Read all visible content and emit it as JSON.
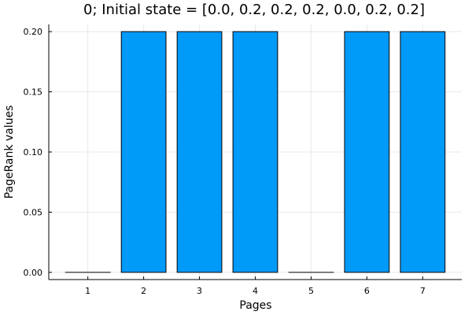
{
  "chart_data": {
    "type": "bar",
    "title": "0; Initial state = [0.0, 0.2, 0.2, 0.2, 0.0, 0.2, 0.2]",
    "xlabel": "Pages",
    "ylabel": "PageRank values",
    "categories": [
      "1",
      "2",
      "3",
      "4",
      "5",
      "6",
      "7"
    ],
    "values": [
      0.0,
      0.2,
      0.2,
      0.2,
      0.0,
      0.2,
      0.2
    ],
    "ylim": [
      -0.006,
      0.206
    ],
    "yticks": [
      0.0,
      0.05,
      0.1,
      0.15,
      0.2
    ],
    "ytick_labels": [
      "0.00",
      "0.05",
      "0.10",
      "0.15",
      "0.20"
    ],
    "grid": true,
    "legend": "none",
    "bar_color": "#009af9"
  }
}
